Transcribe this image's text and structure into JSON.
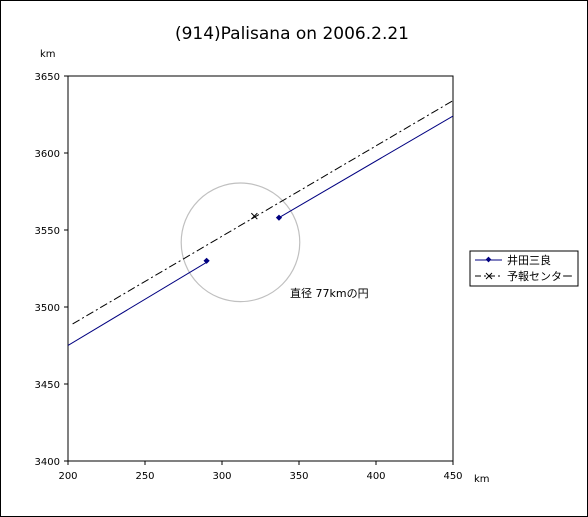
{
  "chart_data": {
    "type": "line",
    "title": "(914)Palisana on 2006.2.21",
    "xlabel": "km",
    "ylabel": "km",
    "xlim": [
      200,
      450
    ],
    "ylim": [
      3400,
      3650
    ],
    "x_ticks": [
      "200",
      "250",
      "300",
      "350",
      "400",
      "450"
    ],
    "y_ticks": [
      "3400",
      "3450",
      "3500",
      "3550",
      "3600",
      "3650"
    ],
    "grid": false,
    "legend_position": "right",
    "series": [
      {
        "name": "井田三良",
        "color": "#000080",
        "style": "solid",
        "line": [
          [
            200,
            3475
          ],
          [
            290,
            3529
          ]
        ],
        "line2": [
          [
            337,
            3558
          ],
          [
            450,
            3624
          ]
        ],
        "markers": [
          [
            290,
            3530
          ],
          [
            337,
            3558
          ]
        ]
      },
      {
        "name": "予報センター",
        "color": "#000000",
        "style": "dashdot",
        "line": [
          [
            203,
            3489
          ],
          [
            450,
            3634
          ]
        ],
        "markers": [
          [
            321,
            3559
          ]
        ]
      }
    ],
    "circle": {
      "center": [
        312,
        3542
      ],
      "radius": 38.5,
      "color": "#c0c0c0"
    },
    "annotation": "直径 77kmの円"
  }
}
